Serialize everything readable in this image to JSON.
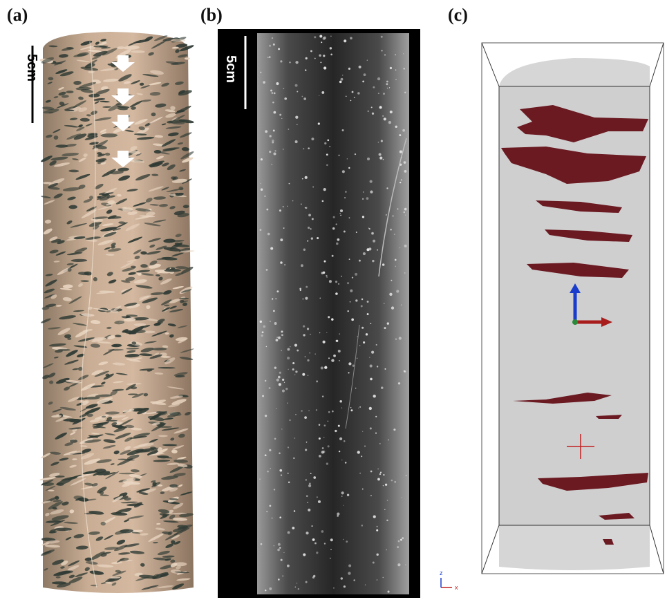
{
  "panels": [
    {
      "label": "(a)",
      "scale_bar": "5cm"
    },
    {
      "label": "(b)",
      "scale_bar": "5cm"
    },
    {
      "label": "(c)"
    }
  ],
  "axis_triad": {
    "z": "z",
    "x": "x"
  }
}
